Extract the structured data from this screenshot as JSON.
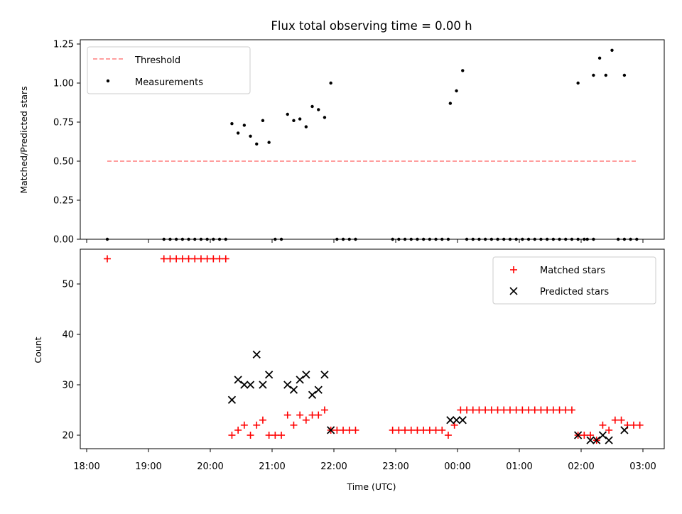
{
  "title": "Flux total observing time = 0.00 h",
  "chart_data": [
    {
      "type": "scatter",
      "ylabel": "Matched/Predicted stars",
      "xlabel": "",
      "xlim": [
        "18:00",
        "03:00"
      ],
      "ylim": [
        0,
        1.25
      ],
      "yticks": [
        "0.00",
        "0.25",
        "0.50",
        "0.75",
        "1.00",
        "1.25"
      ],
      "legend_position": "top-left",
      "threshold": {
        "name": "Threshold",
        "color": "#ff7f7f",
        "style": "dashed",
        "x": [
          "18:20",
          "02:55"
        ],
        "y": 0.5
      },
      "series": [
        {
          "name": "Measurements",
          "color": "#000000",
          "points": [
            [
              "18:20",
              0
            ],
            [
              "19:15",
              0
            ],
            [
              "19:21",
              0
            ],
            [
              "19:27",
              0
            ],
            [
              "19:33",
              0
            ],
            [
              "19:39",
              0
            ],
            [
              "19:45",
              0
            ],
            [
              "19:51",
              0
            ],
            [
              "19:57",
              0
            ],
            [
              "20:03",
              0
            ],
            [
              "20:09",
              0
            ],
            [
              "20:15",
              0
            ],
            [
              "20:21",
              0.74
            ],
            [
              "20:27",
              0.68
            ],
            [
              "20:33",
              0.73
            ],
            [
              "20:39",
              0.66
            ],
            [
              "20:45",
              0.61
            ],
            [
              "20:51",
              0.76
            ],
            [
              "20:57",
              0.62
            ],
            [
              "21:03",
              0
            ],
            [
              "21:09",
              0
            ],
            [
              "21:15",
              0.8
            ],
            [
              "21:21",
              0.76
            ],
            [
              "21:27",
              0.77
            ],
            [
              "21:33",
              0.72
            ],
            [
              "21:39",
              0.85
            ],
            [
              "21:45",
              0.83
            ],
            [
              "21:51",
              0.78
            ],
            [
              "21:57",
              1.0
            ],
            [
              "22:03",
              0
            ],
            [
              "22:09",
              0
            ],
            [
              "22:15",
              0
            ],
            [
              "22:21",
              0
            ],
            [
              "22:57",
              0
            ],
            [
              "23:03",
              0
            ],
            [
              "23:09",
              0
            ],
            [
              "23:15",
              0
            ],
            [
              "23:21",
              0
            ],
            [
              "23:27",
              0
            ],
            [
              "23:33",
              0
            ],
            [
              "23:39",
              0
            ],
            [
              "23:45",
              0
            ],
            [
              "23:51",
              0
            ],
            [
              "23:53",
              0.87
            ],
            [
              "23:59",
              0.95
            ],
            [
              "00:05",
              1.08
            ],
            [
              "00:09",
              0
            ],
            [
              "00:15",
              0
            ],
            [
              "00:21",
              0
            ],
            [
              "00:27",
              0
            ],
            [
              "00:33",
              0
            ],
            [
              "00:39",
              0
            ],
            [
              "00:45",
              0
            ],
            [
              "00:51",
              0
            ],
            [
              "00:57",
              0
            ],
            [
              "01:03",
              0
            ],
            [
              "01:09",
              0
            ],
            [
              "01:15",
              0
            ],
            [
              "01:21",
              0
            ],
            [
              "01:27",
              0
            ],
            [
              "01:33",
              0
            ],
            [
              "01:39",
              0
            ],
            [
              "01:45",
              0
            ],
            [
              "01:51",
              0
            ],
            [
              "01:57",
              0
            ],
            [
              "02:03",
              0
            ],
            [
              "02:06",
              0
            ],
            [
              "02:12",
              0
            ],
            [
              "01:57",
              1.0
            ],
            [
              "02:12",
              1.05
            ],
            [
              "02:18",
              1.16
            ],
            [
              "02:24",
              1.05
            ],
            [
              "02:30",
              1.21
            ],
            [
              "02:36",
              0
            ],
            [
              "02:42",
              0
            ],
            [
              "02:42",
              1.05
            ],
            [
              "02:48",
              0
            ],
            [
              "02:54",
              0
            ]
          ]
        }
      ]
    },
    {
      "type": "scatter",
      "ylabel": "Count",
      "xlabel": "Time (UTC)",
      "xlim": [
        "18:00",
        "03:00"
      ],
      "ylim": [
        18,
        57
      ],
      "yticks": [
        "20",
        "30",
        "40",
        "50"
      ],
      "xticks": [
        "18:00",
        "19:00",
        "20:00",
        "21:00",
        "22:00",
        "23:00",
        "00:00",
        "01:00",
        "02:00",
        "03:00"
      ],
      "legend_position": "top-right",
      "series": [
        {
          "name": "Matched stars",
          "color": "#ff0000",
          "marker": "+",
          "points": [
            [
              "18:20",
              55
            ],
            [
              "19:15",
              55
            ],
            [
              "19:21",
              55
            ],
            [
              "19:27",
              55
            ],
            [
              "19:33",
              55
            ],
            [
              "19:39",
              55
            ],
            [
              "19:45",
              55
            ],
            [
              "19:51",
              55
            ],
            [
              "19:57",
              55
            ],
            [
              "20:03",
              55
            ],
            [
              "20:09",
              55
            ],
            [
              "20:15",
              55
            ],
            [
              "20:21",
              20
            ],
            [
              "20:27",
              21
            ],
            [
              "20:33",
              22
            ],
            [
              "20:39",
              20
            ],
            [
              "20:45",
              22
            ],
            [
              "20:51",
              23
            ],
            [
              "20:57",
              20
            ],
            [
              "21:03",
              20
            ],
            [
              "21:09",
              20
            ],
            [
              "21:15",
              24
            ],
            [
              "21:21",
              22
            ],
            [
              "21:27",
              24
            ],
            [
              "21:33",
              23
            ],
            [
              "21:39",
              24
            ],
            [
              "21:45",
              24
            ],
            [
              "21:51",
              25
            ],
            [
              "21:57",
              21
            ],
            [
              "22:03",
              21
            ],
            [
              "22:09",
              21
            ],
            [
              "22:15",
              21
            ],
            [
              "22:21",
              21
            ],
            [
              "22:57",
              21
            ],
            [
              "23:03",
              21
            ],
            [
              "23:09",
              21
            ],
            [
              "23:15",
              21
            ],
            [
              "23:21",
              21
            ],
            [
              "23:27",
              21
            ],
            [
              "23:33",
              21
            ],
            [
              "23:39",
              21
            ],
            [
              "23:45",
              21
            ],
            [
              "23:51",
              20
            ],
            [
              "23:57",
              22
            ],
            [
              "00:03",
              25
            ],
            [
              "00:09",
              25
            ],
            [
              "00:15",
              25
            ],
            [
              "00:21",
              25
            ],
            [
              "00:27",
              25
            ],
            [
              "00:33",
              25
            ],
            [
              "00:39",
              25
            ],
            [
              "00:45",
              25
            ],
            [
              "00:51",
              25
            ],
            [
              "00:57",
              25
            ],
            [
              "01:03",
              25
            ],
            [
              "01:09",
              25
            ],
            [
              "01:15",
              25
            ],
            [
              "01:21",
              25
            ],
            [
              "01:27",
              25
            ],
            [
              "01:33",
              25
            ],
            [
              "01:39",
              25
            ],
            [
              "01:45",
              25
            ],
            [
              "01:51",
              25
            ],
            [
              "01:57",
              20
            ],
            [
              "02:03",
              20
            ],
            [
              "02:09",
              20
            ],
            [
              "02:15",
              19
            ],
            [
              "02:21",
              22
            ],
            [
              "02:27",
              21
            ],
            [
              "02:33",
              23
            ],
            [
              "02:39",
              23
            ],
            [
              "02:45",
              22
            ],
            [
              "02:51",
              22
            ],
            [
              "02:57",
              22
            ]
          ]
        },
        {
          "name": "Predicted stars",
          "color": "#000000",
          "marker": "x",
          "points": [
            [
              "20:21",
              27
            ],
            [
              "20:27",
              31
            ],
            [
              "20:33",
              30
            ],
            [
              "20:39",
              30
            ],
            [
              "20:45",
              36
            ],
            [
              "20:51",
              30
            ],
            [
              "20:57",
              32
            ],
            [
              "21:15",
              30
            ],
            [
              "21:21",
              29
            ],
            [
              "21:27",
              31
            ],
            [
              "21:33",
              32
            ],
            [
              "21:39",
              28
            ],
            [
              "21:45",
              29
            ],
            [
              "21:51",
              32
            ],
            [
              "21:57",
              21
            ],
            [
              "23:53",
              23
            ],
            [
              "23:59",
              23
            ],
            [
              "00:05",
              23
            ],
            [
              "01:57",
              20
            ],
            [
              "02:09",
              19
            ],
            [
              "02:15",
              19
            ],
            [
              "02:21",
              20
            ],
            [
              "02:27",
              19
            ],
            [
              "02:42",
              21
            ]
          ]
        }
      ]
    }
  ]
}
